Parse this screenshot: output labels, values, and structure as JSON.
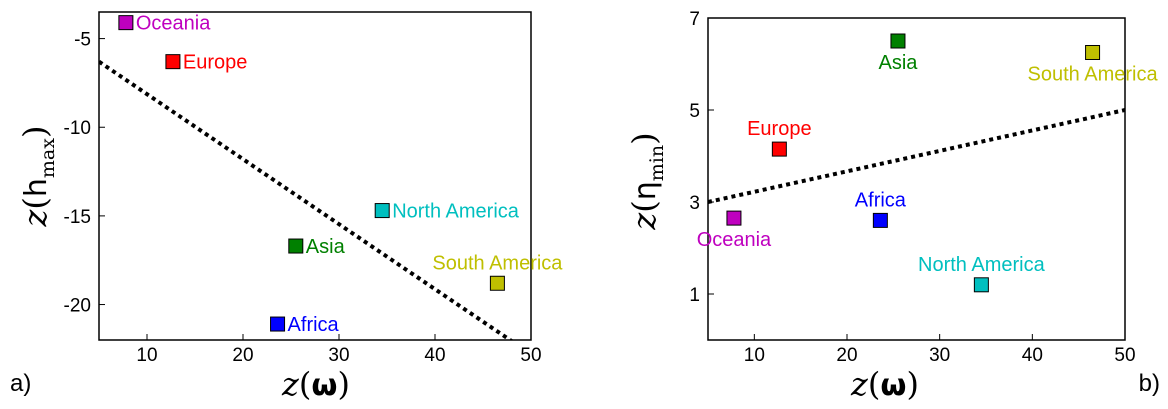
{
  "chart_data": [
    {
      "type": "scatter",
      "panel_label": "a)",
      "xlabel": {
        "z": "z",
        "open": "(",
        "symbol": "ω",
        "sub": "",
        "close": ")"
      },
      "ylabel": {
        "z": "z",
        "open": "(",
        "symbol": "h",
        "sub": "max",
        "close": ")"
      },
      "xlim": [
        5,
        50
      ],
      "ylim": [
        -22,
        -3.5
      ],
      "xticks": [
        10,
        20,
        30,
        40,
        50
      ],
      "yticks": [
        -5,
        -10,
        -15,
        -20
      ],
      "grid": false,
      "trend_line": {
        "style": "dotted",
        "color": "#000000",
        "points": [
          [
            5,
            -6.3
          ],
          [
            50,
            -22.8
          ]
        ]
      },
      "points": [
        {
          "name": "Oceania",
          "x": 7.8,
          "y": -4.1,
          "color": "#bf00bf",
          "label_side": "right"
        },
        {
          "name": "Europe",
          "x": 12.7,
          "y": -6.3,
          "color": "#ff0000",
          "label_side": "right"
        },
        {
          "name": "North America",
          "x": 34.5,
          "y": -14.7,
          "color": "#00bfbf",
          "label_side": "right"
        },
        {
          "name": "Asia",
          "x": 25.5,
          "y": -16.7,
          "color": "#008000",
          "label_side": "right"
        },
        {
          "name": "South America",
          "x": 46.5,
          "y": -18.8,
          "color": "#bfbf00",
          "label_side": "above"
        },
        {
          "name": "Africa",
          "x": 23.6,
          "y": -21.1,
          "color": "#0000ff",
          "label_side": "right"
        }
      ]
    },
    {
      "type": "scatter",
      "panel_label": "b)",
      "xlabel": {
        "z": "z",
        "open": "(",
        "symbol": "ω",
        "sub": "",
        "close": ")"
      },
      "ylabel": {
        "z": "z",
        "open": "(",
        "symbol": "η",
        "sub": "min",
        "close": ")"
      },
      "xlim": [
        5,
        50
      ],
      "ylim": [
        0,
        7
      ],
      "xticks": [
        10,
        20,
        30,
        40,
        50
      ],
      "yticks": [
        1,
        3,
        5,
        7
      ],
      "grid": false,
      "trend_line": {
        "style": "dotted",
        "color": "#000000",
        "points": [
          [
            5,
            3.0
          ],
          [
            50,
            5.0
          ]
        ]
      },
      "points": [
        {
          "name": "Asia",
          "x": 25.5,
          "y": 6.5,
          "color": "#008000",
          "label_side": "below"
        },
        {
          "name": "South America",
          "x": 46.5,
          "y": 6.25,
          "color": "#bfbf00",
          "label_side": "below"
        },
        {
          "name": "Europe",
          "x": 12.7,
          "y": 4.15,
          "color": "#ff0000",
          "label_side": "above"
        },
        {
          "name": "Oceania",
          "x": 7.8,
          "y": 2.65,
          "color": "#bf00bf",
          "label_side": "below"
        },
        {
          "name": "Africa",
          "x": 23.6,
          "y": 2.6,
          "color": "#0000ff",
          "label_side": "above"
        },
        {
          "name": "North America",
          "x": 34.5,
          "y": 1.2,
          "color": "#00bfbf",
          "label_side": "above"
        }
      ]
    }
  ]
}
